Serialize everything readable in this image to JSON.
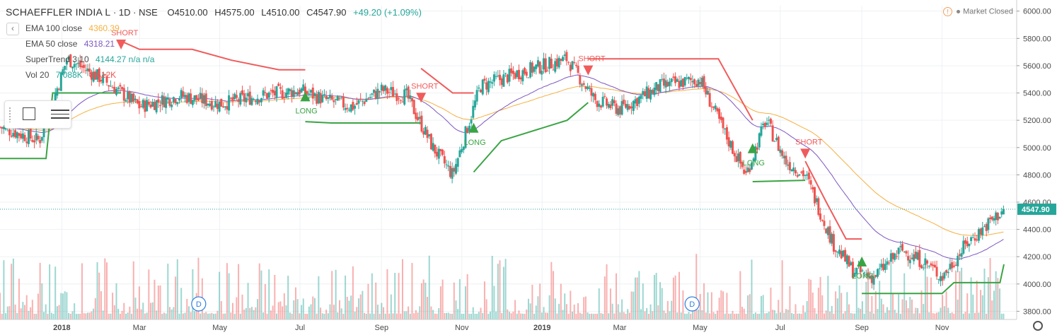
{
  "header": {
    "symbol": "SCHAEFFLER INDIA L",
    "interval": "1D",
    "exchange": "NSE",
    "open": "O4510.00",
    "high": "H4575.00",
    "low": "L4510.00",
    "close": "C4547.90",
    "change": "+49.20 (+1.09%)"
  },
  "indicators": [
    {
      "name": "EMA 100 close",
      "value": "4360.39",
      "color": "#f5b041"
    },
    {
      "name": "EMA 50 close",
      "value": "4318.21",
      "color": "#7e57c2"
    },
    {
      "name": "SuperTrend 3 10",
      "value": "4144.27 n/a n/a",
      "color": "#26a69a"
    },
    {
      "name": "Vol 20",
      "value": "7.088K",
      "value2": "8.612K",
      "color": "#26a69a"
    }
  ],
  "status": {
    "label": "Market Closed"
  },
  "colors": {
    "up": "#26a69a",
    "down": "#ef5350",
    "super_up": "#3aa444",
    "super_down": "#f05b5b",
    "ema100": "#f5b041",
    "ema50": "#7e57c2"
  },
  "chart_data": {
    "type": "candlestick",
    "symbol": "SCHAEFFLER INDIA L",
    "last_price": "4547.90",
    "y_ticks": [
      3800,
      4000,
      4200,
      4400,
      4600,
      4800,
      5000,
      5200,
      5400,
      5600,
      5800,
      6000
    ],
    "ylim": [
      3740,
      6040
    ],
    "x_labels": [
      "2018",
      "Mar",
      "May",
      "Jul",
      "Sep",
      "Nov",
      "2019",
      "Mar",
      "May",
      "Jul",
      "Sep",
      "Nov"
    ],
    "x_start": "2017-11-15",
    "x_end": "2019-12-18",
    "close_path": [
      [
        "2017-11-15",
        5150
      ],
      [
        "2017-12-15",
        5050
      ],
      [
        "2018-01-05",
        5650
      ],
      [
        "2018-02-01",
        5500
      ],
      [
        "2018-03-01",
        5300
      ],
      [
        "2018-04-01",
        5380
      ],
      [
        "2018-05-01",
        5320
      ],
      [
        "2018-06-01",
        5380
      ],
      [
        "2018-07-01",
        5420
      ],
      [
        "2018-07-20",
        5350
      ],
      [
        "2018-08-10",
        5300
      ],
      [
        "2018-09-01",
        5420
      ],
      [
        "2018-09-20",
        5380
      ],
      [
        "2018-10-10",
        5000
      ],
      [
        "2018-10-25",
        4800
      ],
      [
        "2018-11-15",
        5450
      ],
      [
        "2018-12-15",
        5550
      ],
      [
        "2019-01-20",
        5650
      ],
      [
        "2019-02-10",
        5350
      ],
      [
        "2019-03-01",
        5280
      ],
      [
        "2019-04-01",
        5450
      ],
      [
        "2019-05-01",
        5500
      ],
      [
        "2019-05-20",
        5100
      ],
      [
        "2019-06-05",
        4800
      ],
      [
        "2019-06-20",
        5200
      ],
      [
        "2019-07-05",
        4900
      ],
      [
        "2019-07-20",
        4800
      ],
      [
        "2019-08-10",
        4300
      ],
      [
        "2019-08-25",
        4100
      ],
      [
        "2019-09-10",
        4050
      ],
      [
        "2019-10-01",
        4250
      ],
      [
        "2019-10-20",
        4150
      ],
      [
        "2019-11-01",
        4050
      ],
      [
        "2019-11-20",
        4300
      ],
      [
        "2019-12-18",
        4547.9
      ]
    ],
    "supertrend": [
      {
        "side": "long",
        "points": [
          [
            "2017-11-15",
            4920
          ],
          [
            "2017-12-20",
            4920
          ],
          [
            "2017-12-25",
            5400
          ],
          [
            "2018-02-15",
            5400
          ]
        ]
      },
      {
        "side": "short",
        "points": [
          [
            "2018-02-15",
            5780
          ],
          [
            "2018-03-01",
            5720
          ],
          [
            "2018-04-10",
            5720
          ],
          [
            "2018-05-10",
            5640
          ],
          [
            "2018-06-15",
            5570
          ],
          [
            "2018-07-05",
            5570
          ]
        ]
      },
      {
        "side": "long",
        "points": [
          [
            "2018-07-05",
            5190
          ],
          [
            "2018-07-25",
            5180
          ],
          [
            "2018-10-01",
            5180
          ]
        ]
      },
      {
        "side": "short",
        "points": [
          [
            "2018-10-01",
            5580
          ],
          [
            "2018-10-25",
            5400
          ],
          [
            "2018-11-10",
            5400
          ]
        ]
      },
      {
        "side": "long",
        "points": [
          [
            "2018-11-10",
            4820
          ],
          [
            "2018-12-01",
            5050
          ],
          [
            "2019-01-20",
            5200
          ],
          [
            "2019-02-05",
            5330
          ]
        ]
      },
      {
        "side": "short",
        "points": [
          [
            "2019-02-05",
            5650
          ],
          [
            "2019-05-15",
            5650
          ],
          [
            "2019-06-10",
            5200
          ]
        ]
      },
      {
        "side": "long",
        "points": [
          [
            "2019-06-10",
            4750
          ],
          [
            "2019-07-20",
            4760
          ]
        ]
      },
      {
        "side": "short",
        "points": [
          [
            "2019-07-20",
            4900
          ],
          [
            "2019-08-05",
            4600
          ],
          [
            "2019-08-20",
            4330
          ],
          [
            "2019-09-01",
            4330
          ]
        ]
      },
      {
        "side": "long",
        "points": [
          [
            "2019-09-01",
            3930
          ],
          [
            "2019-11-01",
            3930
          ],
          [
            "2019-11-10",
            4010
          ],
          [
            "2019-12-15",
            4010
          ],
          [
            "2019-12-18",
            4144
          ]
        ]
      }
    ],
    "signals": [
      {
        "label": "SHORT",
        "date": "2018-02-15",
        "price": 5750
      },
      {
        "label": "LONG",
        "date": "2018-07-05",
        "price": 5380
      },
      {
        "label": "SHORT",
        "date": "2018-10-01",
        "price": 5360
      },
      {
        "label": "LONG",
        "date": "2018-11-10",
        "price": 5150
      },
      {
        "label": "SHORT",
        "date": "2019-02-05",
        "price": 5560
      },
      {
        "label": "LONG",
        "date": "2019-06-10",
        "price": 5000
      },
      {
        "label": "SHORT",
        "date": "2019-07-20",
        "price": 4950
      },
      {
        "label": "LONG",
        "date": "2019-09-01",
        "price": 4170
      }
    ],
    "dividend_markers": [
      {
        "label": "D",
        "date": "2018-04-15"
      },
      {
        "label": "D",
        "date": "2019-04-25"
      }
    ]
  }
}
